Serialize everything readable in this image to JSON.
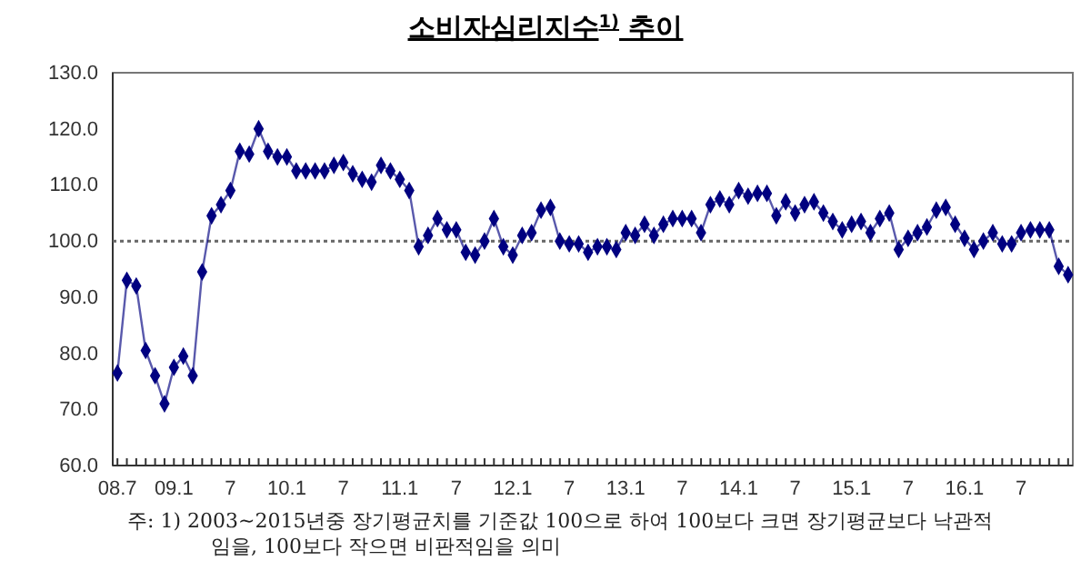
{
  "chart_data": {
    "type": "line",
    "title": "소비자심리지수$^{1)}$ 추이",
    "categories": [
      "08.7",
      null,
      null,
      null,
      null,
      null,
      "09.1",
      null,
      null,
      null,
      null,
      null,
      "7",
      null,
      null,
      null,
      null,
      null,
      "10.1",
      null,
      null,
      null,
      null,
      null,
      "7",
      null,
      null,
      null,
      null,
      null,
      "11.1",
      null,
      null,
      null,
      null,
      null,
      "7",
      null,
      null,
      null,
      null,
      null,
      "12.1",
      null,
      null,
      null,
      null,
      null,
      "7",
      null,
      null,
      null,
      null,
      null,
      "13.1",
      null,
      null,
      null,
      null,
      null,
      "7",
      null,
      null,
      null,
      null,
      null,
      "14.1",
      null,
      null,
      null,
      null,
      null,
      "7",
      null,
      null,
      null,
      null,
      null,
      "15.1",
      null,
      null,
      null,
      null,
      null,
      "7",
      null,
      null,
      null,
      null,
      null,
      "16.1",
      null,
      null,
      null,
      null,
      null,
      "7",
      null,
      null,
      null,
      null,
      null
    ],
    "series": [
      {
        "color": "#000080",
        "values": [
          76.5,
          93,
          92,
          80.5,
          76,
          71,
          77.5,
          79.5,
          76,
          94.5,
          104.5,
          106.5,
          109,
          116,
          115.5,
          120,
          116,
          115,
          115,
          112.5,
          112.5,
          112.5,
          112.5,
          113.5,
          114,
          112,
          111,
          110.5,
          113.5,
          112.5,
          111,
          109,
          99,
          101,
          104,
          102,
          102,
          98,
          97.5,
          100,
          104,
          99,
          97.5,
          101,
          101.5,
          105.5,
          106,
          100,
          99.5,
          99.5,
          98,
          99,
          99,
          98.5,
          101.5,
          101,
          103,
          101,
          103,
          104,
          104,
          104,
          101.5,
          106.5,
          107.5,
          106.5,
          109,
          108,
          108.5,
          108.5,
          104.5,
          107,
          105,
          106.5,
          107,
          105,
          103.5,
          102,
          103,
          103.5,
          101.5,
          104,
          105,
          98.5,
          100.5,
          101.5,
          102.5,
          105.5,
          106,
          103,
          100.5,
          98.5,
          100,
          101.5,
          99.5,
          99.5,
          101.5,
          102,
          102,
          102,
          95.5,
          94
        ]
      }
    ],
    "ylim": [
      60,
      130
    ],
    "yticks": [
      {
        "value": 60,
        "label": "60.0"
      },
      {
        "value": 70,
        "label": "70.0"
      },
      {
        "value": 80,
        "label": "80.0"
      },
      {
        "value": 90,
        "label": "90.0"
      },
      {
        "value": 100,
        "label": "100.0"
      },
      {
        "value": 110,
        "label": "110.0"
      },
      {
        "value": 120,
        "label": "120.0"
      },
      {
        "value": 130,
        "label": "130.0"
      }
    ],
    "ref_lines": [
      {
        "axis": "y",
        "value": 100,
        "color": "#666666",
        "line_style": "dotted"
      }
    ],
    "marker": "diamond",
    "line_style": "solid",
    "grid": false,
    "annotations": [
      "주: 1) 2003~2015년중 장기평균치를 기준값 100으로 하여 100보다 크면 장기평균보다 낙관적임을, 100보다 작으면 비판적임을 의미"
    ]
  }
}
